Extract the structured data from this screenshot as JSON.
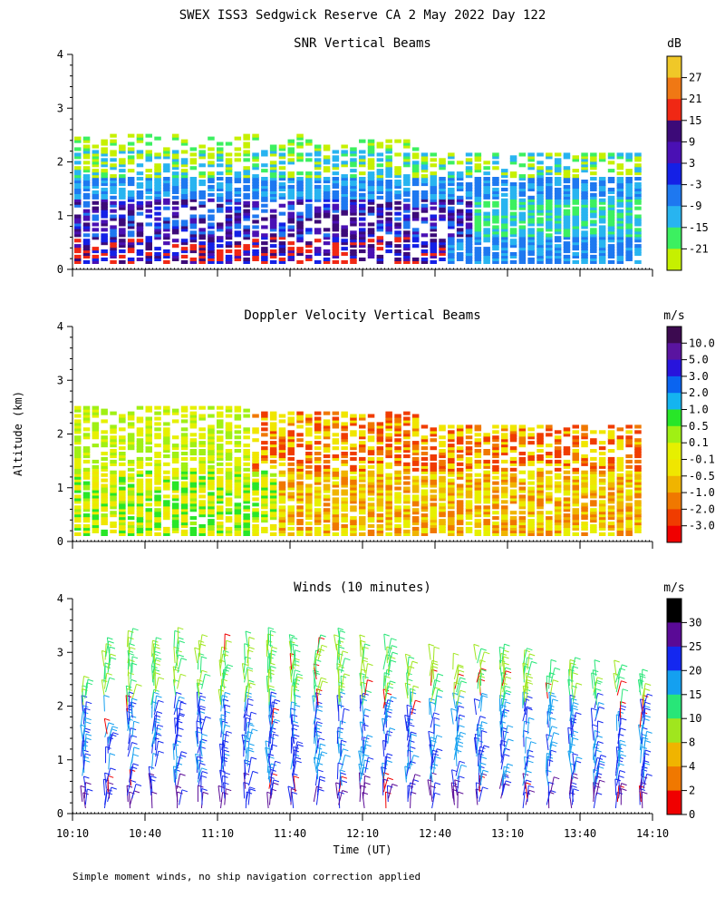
{
  "figure": {
    "main_title": "SWEX ISS3 Sedgwick Reserve CA   2 May 2022 Day 122",
    "ylabel": "Altitude (km)",
    "xlabel": "Time (UT)",
    "footnote": "Simple moment winds, no ship navigation correction applied"
  },
  "chart_data": [
    {
      "type": "heatmap",
      "title": "SNR Vertical Beams",
      "ylim": [
        0,
        4
      ],
      "yticks": [
        "0",
        "1",
        "2",
        "3",
        "4"
      ],
      "xlim": [
        "10:10",
        "14:10"
      ],
      "colorbar_unit": "dB",
      "colorbar_labels": [
        "-21",
        "-15",
        "-9",
        "-3",
        "3",
        "9",
        "15",
        "21",
        "27"
      ],
      "colorbar_colors": [
        "#c6f000",
        "#3cf060",
        "#28b4f0",
        "#1e78f0",
        "#1420e6",
        "#4a10b4",
        "#3c0a78",
        "#f02814",
        "#f07814",
        "#f0c828"
      ],
      "layers": [
        {
          "alt_from": 1.5,
          "alt_to": 2.2,
          "level": "-9 to -15 dB"
        },
        {
          "alt_from": 0.7,
          "alt_to": 1.5,
          "level": "-3 to 3 dB"
        },
        {
          "alt_from": 0.1,
          "alt_to": 0.7,
          "level": "3 to 21 dB"
        }
      ]
    },
    {
      "type": "heatmap",
      "title": "Doppler Velocity Vertical Beams",
      "ylim": [
        0,
        4
      ],
      "yticks": [
        "0",
        "1",
        "2",
        "3",
        "4"
      ],
      "xlim": [
        "10:10",
        "14:10"
      ],
      "colorbar_unit": "m/s",
      "colorbar_labels": [
        "10.0",
        "5.0",
        "3.0",
        "2.0",
        "1.0",
        "0.5",
        "0.1",
        "-0.1",
        "-0.5",
        "-1.0",
        "-2.0",
        "-3.0"
      ],
      "colorbar_colors": [
        "#3c0a50",
        "#5a14a0",
        "#2814dc",
        "#0a64f0",
        "#14b4f0",
        "#28e628",
        "#a0f014",
        "#e6f000",
        "#f0e600",
        "#f0b400",
        "#f07800",
        "#f03c00",
        "#f00000"
      ],
      "layers": [
        {
          "alt_from": 1.3,
          "alt_to": 2.3,
          "level": "-0.5 to -2.0 m/s"
        },
        {
          "alt_from": 0.1,
          "alt_to": 1.3,
          "level": "0.1 to -0.5 m/s"
        }
      ]
    },
    {
      "type": "barbs",
      "title": "Winds (10 minutes)",
      "ylim": [
        0,
        4
      ],
      "yticks": [
        "0",
        "1",
        "2",
        "3",
        "4"
      ],
      "x_ticklabels": [
        "10:10",
        "10:40",
        "11:10",
        "11:40",
        "12:10",
        "12:40",
        "13:10",
        "13:40",
        "14:10"
      ],
      "x_hours": [
        10.1667,
        10.6667,
        11.1667,
        11.6667,
        12.1667,
        12.6667,
        13.1667,
        13.6667,
        14.1667
      ],
      "colorbar_unit": "m/s",
      "colorbar_labels": [
        "30",
        "25",
        "20",
        "15",
        "10",
        "8",
        "4",
        "2",
        "0"
      ],
      "colorbar_colors": [
        "#f00000",
        "#f07800",
        "#f0b400",
        "#a0e61e",
        "#28e678",
        "#14a0f0",
        "#1428f0",
        "#5a0a96",
        "#000000"
      ],
      "barb_times_utc": [
        "10:10",
        "10:20",
        "10:30",
        "10:40",
        "10:50",
        "11:00",
        "11:10",
        "11:20",
        "11:30",
        "11:40",
        "11:50",
        "12:00",
        "12:10",
        "12:20",
        "12:30",
        "12:40",
        "12:50",
        "13:00",
        "13:10",
        "13:20",
        "13:30",
        "13:40",
        "13:50",
        "14:00",
        "14:10"
      ],
      "barb_max_alt_km": [
        2.3,
        3.1,
        3.2,
        3.1,
        3.2,
        3.1,
        3.1,
        3.2,
        3.2,
        3.1,
        3.1,
        3.2,
        3.1,
        3.1,
        2.9,
        2.9,
        2.7,
        2.9,
        2.9,
        2.9,
        2.6,
        2.8,
        2.6,
        2.6,
        2.4
      ]
    }
  ]
}
